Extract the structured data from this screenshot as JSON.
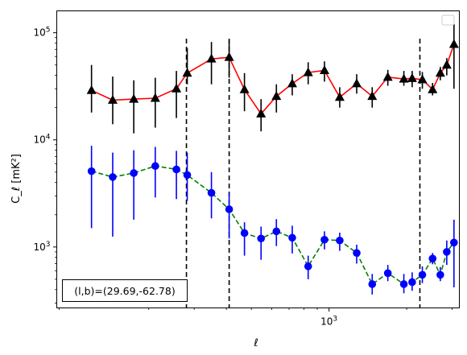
{
  "chart_data": {
    "type": "line",
    "title": "",
    "xlabel": "ℓ",
    "ylabel": "C_ℓ [mK²]",
    "xscale": "log",
    "yscale": "log",
    "xlim": [
      88,
      2860
    ],
    "ylim": [
      270,
      160000
    ],
    "grid": false,
    "legend": "top-right (empty box)",
    "x_tick_labels": [
      {
        "value": 1000,
        "label": "10^3"
      }
    ],
    "y_tick_labels": [
      {
        "value": 1000,
        "label": "10^3"
      },
      {
        "value": 10000,
        "label": "10^4"
      },
      {
        "value": 100000,
        "label": "10^5"
      }
    ],
    "vlines": [
      280,
      410,
      2250
    ],
    "annotation": "(l,b)=(29.69,-62.78)",
    "series": [
      {
        "style": "solid",
        "line_color": "#ff0000",
        "marker": "triangle",
        "marker_color": "#000000",
        "errorbar_color": "#000000",
        "x": [
          120,
          145,
          175,
          212,
          256,
          282,
          350,
          410,
          470,
          545,
          625,
          720,
          830,
          960,
          1100,
          1280,
          1470,
          1690,
          1950,
          2100,
          2300,
          2520,
          2700
        ],
        "y": [
          29000,
          23500,
          24000,
          24500,
          30000,
          42000,
          57000,
          59000,
          29500,
          17500,
          25500,
          33500,
          42500,
          44500,
          25000,
          33500,
          25500,
          38500,
          37000,
          37500,
          36500,
          29500,
          42000
        ],
        "yerr_low": [
          18000,
          14000,
          11500,
          13000,
          16000,
          33000,
          33000,
          38000,
          18500,
          12000,
          18000,
          26000,
          33000,
          35000,
          20000,
          27000,
          20000,
          32000,
          32000,
          31000,
          30000,
          26000,
          36000
        ],
        "yerr_high": [
          50000,
          39000,
          36000,
          38000,
          44000,
          72000,
          82000,
          86000,
          42000,
          24000,
          33000,
          41000,
          53000,
          54000,
          31000,
          41000,
          31000,
          45000,
          44000,
          44000,
          43000,
          34000,
          48000
        ]
      },
      {
        "style": "dashed",
        "line_color": "#008000",
        "marker": "circle",
        "marker_color": "#0000ff",
        "errorbar_color": "#0000ff",
        "x": [
          120,
          145,
          175,
          212,
          256,
          282,
          350,
          410,
          470,
          545,
          625,
          720,
          830,
          960,
          1100,
          1280,
          1470,
          1690,
          1950,
          2100,
          2300,
          2520,
          2700
        ],
        "y": [
          5100,
          4500,
          4900,
          5700,
          5300,
          4700,
          3200,
          2250,
          1350,
          1200,
          1400,
          1220,
          660,
          1170,
          1150,
          880,
          450,
          570,
          450,
          470,
          550,
          780,
          550
        ],
        "yerr_low": [
          1500,
          1250,
          1800,
          2900,
          2800,
          2700,
          1850,
          1200,
          830,
          760,
          1020,
          870,
          500,
          950,
          920,
          700,
          360,
          480,
          370,
          390,
          460,
          690,
          480
        ],
        "yerr_high": [
          8800,
          7600,
          8000,
          8600,
          7900,
          7600,
          5000,
          3200,
          1700,
          1550,
          1820,
          1580,
          830,
          1400,
          1360,
          1050,
          560,
          680,
          560,
          580,
          660,
          880,
          650
        ]
      }
    ]
  },
  "series_extra": {
    "red_last": {
      "x": 2860,
      "y": 50000,
      "lo": 40000,
      "hi": 58000
    },
    "red_end": {
      "x": 3050,
      "y": 78000,
      "lo": 30000,
      "hi": 120000
    },
    "blue_last": {
      "x": 2860,
      "y": 900,
      "lo": 680,
      "hi": 1150
    },
    "blue_end": {
      "x": 3050,
      "y": 1100,
      "lo": 420,
      "hi": 1800
    }
  }
}
